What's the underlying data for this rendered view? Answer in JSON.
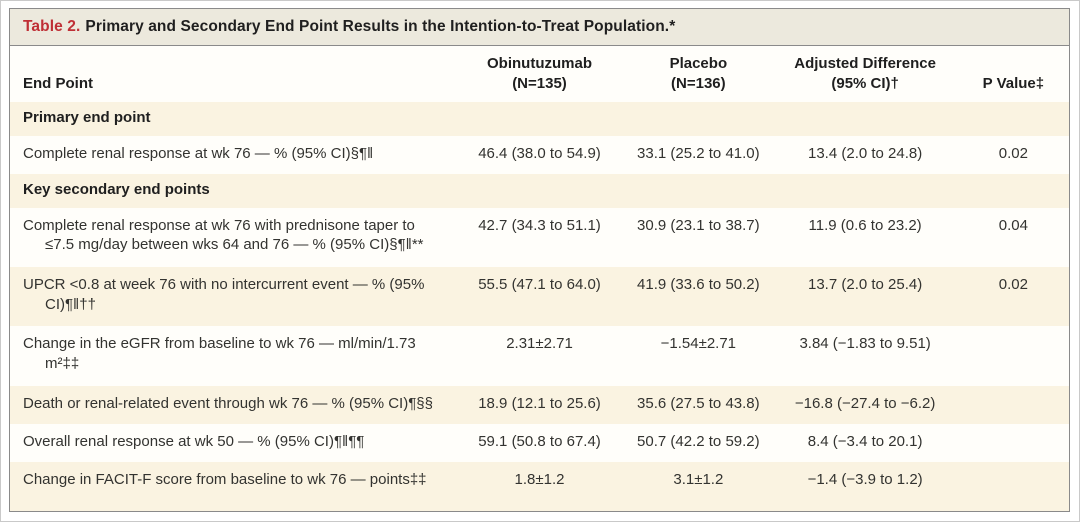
{
  "title": {
    "prefix": "Table 2.",
    "text": "Primary and Secondary End Point Results in the Intention-to-Treat Population.*"
  },
  "columns": {
    "endpoint": "End Point",
    "obinutuzumab_line1": "Obinutuzumab",
    "obinutuzumab_line2": "(N=135)",
    "placebo_line1": "Placebo",
    "placebo_line2": "(N=136)",
    "adjusted_line1": "Adjusted Difference",
    "adjusted_line2": "(95% CI)†",
    "pvalue": "P Value‡"
  },
  "colors": {
    "accent_red": "#bf2f35",
    "shaded_row": "#faf3e1",
    "title_bar": "#ece9dd"
  },
  "chart_data": {
    "type": "table",
    "title": "Table 2. Primary and Secondary End Point Results in the Intention-to-Treat Population.*",
    "columns": [
      "End Point",
      "Obinutuzumab (N=135)",
      "Placebo (N=136)",
      "Adjusted Difference (95% CI)†",
      "P Value‡"
    ]
  },
  "rows": [
    {
      "type": "section",
      "endpoint": "Primary end point"
    },
    {
      "type": "data",
      "endpoint": "Complete renal response at wk 76 — % (95% CI)§¶‖",
      "obinutuzumab": "46.4 (38.0 to 54.9)",
      "placebo": "33.1 (25.2 to 41.0)",
      "adjusted_difference": "13.4 (2.0 to 24.8)",
      "p_value": "0.02"
    },
    {
      "type": "section",
      "endpoint": "Key secondary end points"
    },
    {
      "type": "data",
      "endpoint": "Complete renal response at wk 76 with prednisone taper to ≤7.5 mg/day between wks 64 and 76 — % (95% CI)§¶‖**",
      "obinutuzumab": "42.7 (34.3 to 51.1)",
      "placebo": "30.9 (23.1 to 38.7)",
      "adjusted_difference": "11.9 (0.6 to 23.2)",
      "p_value": "0.04"
    },
    {
      "type": "data",
      "endpoint": "UPCR <0.8 at week 76 with no intercurrent event — % (95% CI)¶‖††",
      "obinutuzumab": "55.5 (47.1 to 64.0)",
      "placebo": "41.9 (33.6 to 50.2)",
      "adjusted_difference": "13.7 (2.0 to 25.4)",
      "p_value": "0.02"
    },
    {
      "type": "data",
      "endpoint": "Change in the eGFR from baseline to wk 76 — ml/min/1.73 m²‡‡",
      "obinutuzumab": "2.31±2.71",
      "placebo": "−1.54±2.71",
      "adjusted_difference": "3.84 (−1.83 to 9.51)",
      "p_value": ""
    },
    {
      "type": "data",
      "endpoint": "Death or renal-related event through wk 76 — % (95% CI)¶§§",
      "obinutuzumab": "18.9 (12.1 to 25.6)",
      "placebo": "35.6 (27.5 to 43.8)",
      "adjusted_difference": "−16.8 (−27.4 to −6.2)",
      "p_value": ""
    },
    {
      "type": "data",
      "endpoint": "Overall renal response at wk 50 — % (95% CI)¶‖¶¶",
      "obinutuzumab": "59.1 (50.8 to 67.4)",
      "placebo": "50.7 (42.2 to 59.2)",
      "adjusted_difference": "8.4 (−3.4 to 20.1)",
      "p_value": ""
    },
    {
      "type": "data",
      "endpoint": "Change in FACIT-F score from baseline to wk 76 — points‡‡",
      "obinutuzumab": "1.8±1.2",
      "placebo": "3.1±1.2",
      "adjusted_difference": "−1.4 (−3.9 to 1.2)",
      "p_value": ""
    }
  ]
}
